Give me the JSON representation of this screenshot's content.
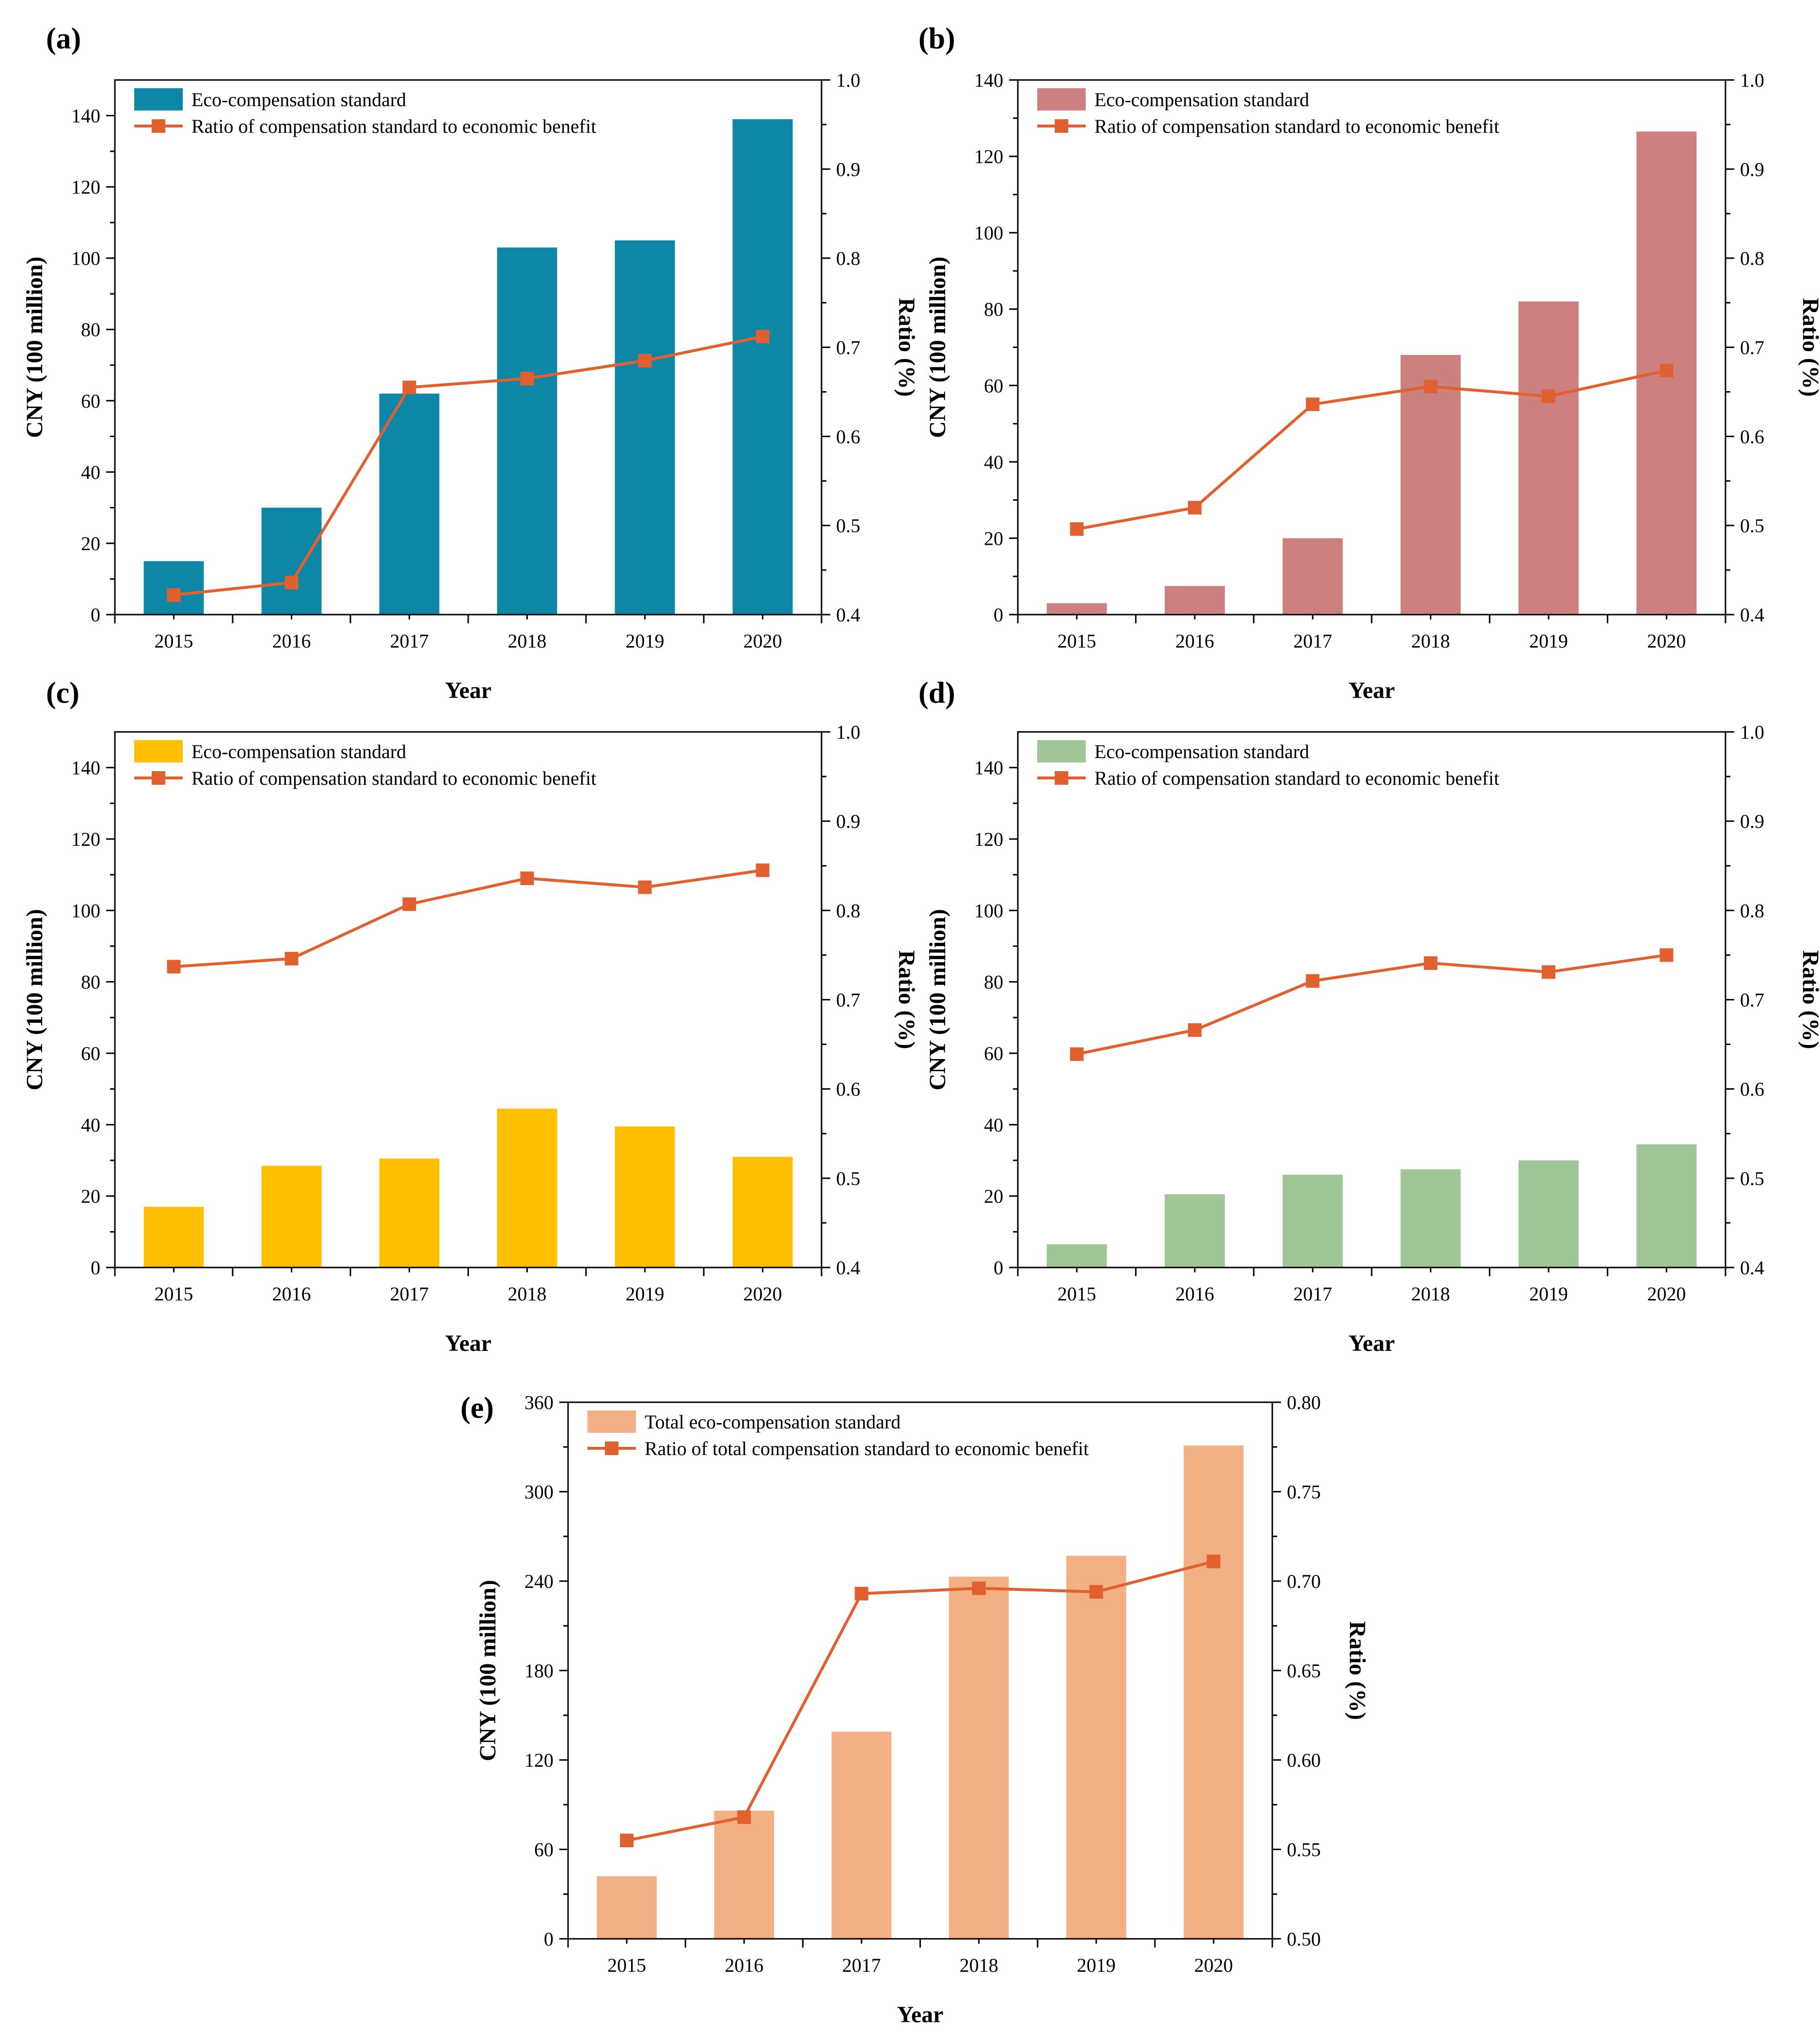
{
  "chart_data": [
    {
      "panel": "(a)",
      "type": "bar+line",
      "bar_color": "#0e86a6",
      "line_color": "#e0602f",
      "xlabel": "Year",
      "ylabel": "CNY (100 million)",
      "y2label": "Ratio (%)",
      "categories": [
        "2015",
        "2016",
        "2017",
        "2018",
        "2019",
        "2020"
      ],
      "ylim": [
        0,
        150
      ],
      "yticks": [
        "0",
        "20",
        "40",
        "60",
        "80",
        "100",
        "120",
        "140"
      ],
      "y2lim": [
        0.4,
        1.0
      ],
      "y2ticks": [
        "0.4",
        "0.5",
        "0.6",
        "0.7",
        "0.8",
        "0.9",
        "1.0"
      ],
      "series": [
        {
          "name": "Eco-compensation standard",
          "kind": "bar",
          "values": [
            15,
            30,
            62,
            103,
            105,
            139
          ]
        },
        {
          "name": "Ratio of compensation standard to economic benefit",
          "kind": "line",
          "axis": "right",
          "values": [
            0.422,
            0.436,
            0.655,
            0.665,
            0.685,
            0.712
          ]
        }
      ]
    },
    {
      "panel": "(b)",
      "type": "bar+line",
      "bar_color": "#cd8080",
      "line_color": "#e0602f",
      "xlabel": "Year",
      "ylabel": "CNY (100 million)",
      "y2label": "Ratio (%)",
      "categories": [
        "2015",
        "2016",
        "2017",
        "2018",
        "2019",
        "2020"
      ],
      "ylim": [
        0,
        140
      ],
      "yticks": [
        "0",
        "20",
        "40",
        "60",
        "80",
        "100",
        "120",
        "140"
      ],
      "y2lim": [
        0.4,
        1.0
      ],
      "y2ticks": [
        "0.4",
        "0.5",
        "0.6",
        "0.7",
        "0.8",
        "0.9",
        "1.0"
      ],
      "series": [
        {
          "name": "Eco-compensation standard",
          "kind": "bar",
          "values": [
            3,
            7.5,
            20,
            68,
            82,
            126.5
          ]
        },
        {
          "name": "Ratio of compensation standard to economic benefit",
          "kind": "line",
          "axis": "right",
          "values": [
            0.496,
            0.52,
            0.636,
            0.656,
            0.645,
            0.674
          ]
        }
      ]
    },
    {
      "panel": "(c)",
      "type": "bar+line",
      "bar_color": "#fdbf00",
      "line_color": "#e0602f",
      "xlabel": "Year",
      "ylabel": "CNY (100 million)",
      "y2label": "Ratio (%)",
      "categories": [
        "2015",
        "2016",
        "2017",
        "2018",
        "2019",
        "2020"
      ],
      "ylim": [
        0,
        150
      ],
      "yticks": [
        "0",
        "20",
        "40",
        "60",
        "80",
        "100",
        "120",
        "140"
      ],
      "y2lim": [
        0.4,
        1.0
      ],
      "y2ticks": [
        "0.4",
        "0.5",
        "0.6",
        "0.7",
        "0.8",
        "0.9",
        "1.0"
      ],
      "series": [
        {
          "name": "Eco-compensation standard",
          "kind": "bar",
          "values": [
            17,
            28.5,
            30.5,
            44.5,
            39.5,
            31
          ]
        },
        {
          "name": "Ratio of compensation standard to economic benefit",
          "kind": "line",
          "axis": "right",
          "values": [
            0.737,
            0.746,
            0.807,
            0.836,
            0.826,
            0.845
          ]
        }
      ]
    },
    {
      "panel": "(d)",
      "type": "bar+line",
      "bar_color": "#a0c596",
      "line_color": "#e0602f",
      "xlabel": "Year",
      "ylabel": "CNY (100 million)",
      "y2label": "Ratio (%)",
      "categories": [
        "2015",
        "2016",
        "2017",
        "2018",
        "2019",
        "2020"
      ],
      "ylim": [
        0,
        150
      ],
      "yticks": [
        "0",
        "20",
        "40",
        "60",
        "80",
        "100",
        "120",
        "140"
      ],
      "y2lim": [
        0.4,
        1.0
      ],
      "y2ticks": [
        "0.4",
        "0.5",
        "0.6",
        "0.7",
        "0.8",
        "0.9",
        "1.0"
      ],
      "series": [
        {
          "name": "Eco-compensation standard",
          "kind": "bar",
          "values": [
            6.5,
            20.5,
            26,
            27.5,
            30,
            34.5
          ]
        },
        {
          "name": "Ratio of compensation standard to economic benefit",
          "kind": "line",
          "axis": "right",
          "values": [
            0.639,
            0.666,
            0.721,
            0.741,
            0.731,
            0.75
          ]
        }
      ]
    },
    {
      "panel": "(e)",
      "type": "bar+line",
      "bar_color": "#f2b084",
      "line_color": "#e0602f",
      "xlabel": "Year",
      "ylabel": "CNY (100 million)",
      "y2label": "Ratio (%)",
      "categories": [
        "2015",
        "2016",
        "2017",
        "2018",
        "2019",
        "2020"
      ],
      "ylim": [
        0,
        360
      ],
      "yticks": [
        "0",
        "60",
        "120",
        "180",
        "240",
        "300",
        "360"
      ],
      "y2lim": [
        0.5,
        0.8
      ],
      "y2ticks": [
        "0.50",
        "0.55",
        "0.60",
        "0.65",
        "0.70",
        "0.75",
        "0.80"
      ],
      "series": [
        {
          "name": "Total eco-compensation standard",
          "kind": "bar",
          "values": [
            42,
            86,
            139,
            243,
            257,
            331
          ]
        },
        {
          "name": "Ratio of total compensation standard to economic benefit",
          "kind": "line",
          "axis": "right",
          "values": [
            0.555,
            0.568,
            0.693,
            0.696,
            0.694,
            0.711
          ]
        }
      ]
    }
  ]
}
